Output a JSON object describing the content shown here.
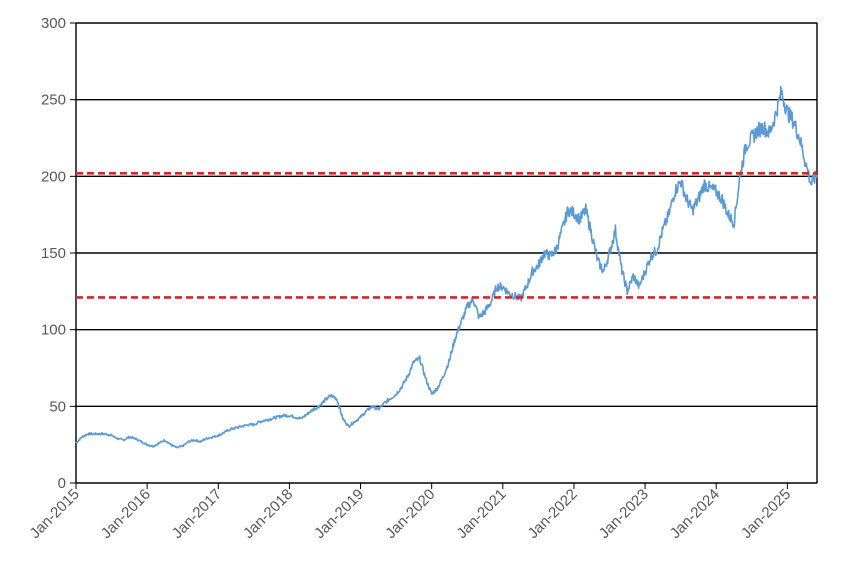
{
  "chart_data": {
    "type": "line",
    "title": "",
    "xlabel": "",
    "ylabel": "",
    "x_ticks": [
      "Jan-2015",
      "Jan-2016",
      "Jan-2017",
      "Jan-2018",
      "Jan-2019",
      "Jan-2020",
      "Jan-2021",
      "Jan-2022",
      "Jan-2023",
      "Jan-2024",
      "Jan-2025"
    ],
    "y_ticks": [
      "0",
      "50",
      "100",
      "150",
      "200",
      "250",
      "300"
    ],
    "xlim": [
      "2015-01",
      "2025-06"
    ],
    "ylim": [
      0,
      300
    ],
    "grid": "horizontal",
    "legend": "none",
    "colors": {
      "series": "#5b9bd5",
      "reference": "#d62728",
      "grid": "#000000",
      "axis_text": "#595959"
    },
    "reference_lines": [
      {
        "value": 202,
        "style": "dashed"
      },
      {
        "value": 121,
        "style": "dashed"
      }
    ],
    "series": [
      {
        "x": [
          "2015-01",
          "2015-02",
          "2015-03",
          "2015-04",
          "2015-05",
          "2015-06",
          "2015-07",
          "2015-08",
          "2015-09",
          "2015-10",
          "2015-11",
          "2015-12",
          "2016-01",
          "2016-02",
          "2016-03",
          "2016-04",
          "2016-05",
          "2016-06",
          "2016-07",
          "2016-08",
          "2016-09",
          "2016-10",
          "2016-11",
          "2016-12",
          "2017-01",
          "2017-02",
          "2017-03",
          "2017-04",
          "2017-05",
          "2017-06",
          "2017-07",
          "2017-08",
          "2017-09",
          "2017-10",
          "2017-11",
          "2017-12",
          "2018-01",
          "2018-02",
          "2018-03",
          "2018-04",
          "2018-05",
          "2018-06",
          "2018-07",
          "2018-08",
          "2018-09",
          "2018-10",
          "2018-11",
          "2018-12",
          "2019-01",
          "2019-02",
          "2019-03",
          "2019-04",
          "2019-05",
          "2019-06",
          "2019-07",
          "2019-08",
          "2019-09",
          "2019-10",
          "2019-11",
          "2019-12",
          "2020-01",
          "2020-02",
          "2020-03",
          "2020-04",
          "2020-05",
          "2020-06",
          "2020-07",
          "2020-08",
          "2020-09",
          "2020-10",
          "2020-11",
          "2020-12",
          "2021-01",
          "2021-02",
          "2021-03",
          "2021-04",
          "2021-05",
          "2021-06",
          "2021-07",
          "2021-08",
          "2021-09",
          "2021-10",
          "2021-11",
          "2021-12",
          "2022-01",
          "2022-02",
          "2022-03",
          "2022-04",
          "2022-05",
          "2022-06",
          "2022-07",
          "2022-08",
          "2022-09",
          "2022-10",
          "2022-11",
          "2022-12",
          "2023-01",
          "2023-02",
          "2023-03",
          "2023-04",
          "2023-05",
          "2023-06",
          "2023-07",
          "2023-08",
          "2023-09",
          "2023-10",
          "2023-11",
          "2023-12",
          "2024-01",
          "2024-02",
          "2024-03",
          "2024-04",
          "2024-05",
          "2024-06",
          "2024-07",
          "2024-08",
          "2024-09",
          "2024-10",
          "2024-11",
          "2024-12",
          "2025-01",
          "2025-02",
          "2025-03",
          "2025-04",
          "2025-05",
          "2025-06"
        ],
        "values": [
          26,
          30,
          32,
          32,
          32,
          32,
          31,
          29,
          28,
          30,
          29,
          27,
          25,
          24,
          26,
          28,
          25,
          23,
          24,
          27,
          28,
          27,
          29,
          30,
          31,
          33,
          35,
          36,
          37,
          38,
          38,
          40,
          41,
          42,
          43,
          44,
          44,
          43,
          42,
          45,
          48,
          50,
          54,
          57,
          55,
          42,
          37,
          40,
          43,
          47,
          50,
          48,
          52,
          55,
          58,
          63,
          70,
          79,
          81,
          68,
          58,
          62,
          70,
          80,
          95,
          105,
          115,
          120,
          108,
          112,
          118,
          128,
          128,
          124,
          122,
          120,
          128,
          138,
          142,
          150,
          148,
          152,
          165,
          178,
          176,
          172,
          178,
          162,
          145,
          138,
          150,
          165,
          140,
          125,
          135,
          128,
          138,
          148,
          152,
          165,
          175,
          190,
          197,
          185,
          178,
          185,
          195,
          192,
          190,
          185,
          175,
          170,
          200,
          220,
          225,
          230,
          232,
          228,
          240,
          255,
          242,
          236,
          226,
          210,
          195,
          201
        ]
      }
    ]
  }
}
